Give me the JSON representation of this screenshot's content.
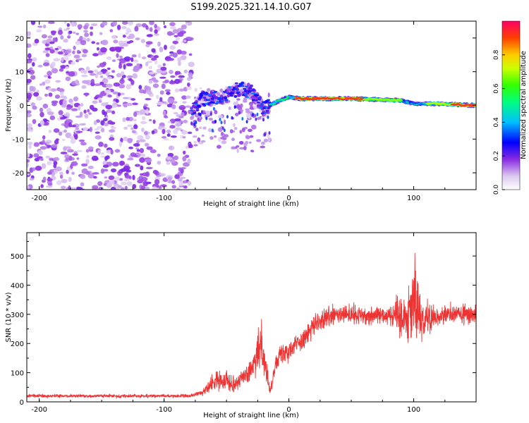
{
  "title": "S199.2025.321.14.10.G07",
  "chart_data": [
    {
      "type": "heatmap",
      "name": "spectrogram",
      "xlabel": "Height of straight line (km)",
      "ylabel": "Frequency (Hz)",
      "xlim": [
        -210,
        150
      ],
      "ylim": [
        -25,
        25
      ],
      "xticks": [
        -200,
        -100,
        0,
        100
      ],
      "yticks": [
        20,
        10,
        0,
        -10,
        -20
      ],
      "colorbar": {
        "label": "Normalized spectral amplitude",
        "range": [
          0,
          1
        ],
        "ticks": [
          0.0,
          0.2,
          0.4,
          0.6,
          0.8
        ]
      },
      "regions": [
        {
          "description_range_km": [
            -210,
            -78
          ],
          "character": "scattered low-amplitude noise, all frequencies"
        },
        {
          "description_range_km": [
            -78,
            -15
          ],
          "character": "scattered moderate blobs between -15 and +8 Hz"
        },
        {
          "description_range_km": [
            -15,
            150
          ],
          "character": "continuous tone near 0 to +3 Hz, peak amplitude ~1.0 from 5 to 60 km and 130 to 150 km"
        }
      ],
      "ridge": [
        {
          "x": -78,
          "f": -2
        },
        {
          "x": -70,
          "f": 2
        },
        {
          "x": -60,
          "f": 2
        },
        {
          "x": -50,
          "f": 3
        },
        {
          "x": -40,
          "f": 5
        },
        {
          "x": -30,
          "f": 4
        },
        {
          "x": -20,
          "f": -1
        },
        {
          "x": -10,
          "f": 1
        },
        {
          "x": 0,
          "f": 2.5
        },
        {
          "x": 10,
          "f": 2
        },
        {
          "x": 50,
          "f": 2
        },
        {
          "x": 90,
          "f": 1.5
        },
        {
          "x": 100,
          "f": 0.5
        },
        {
          "x": 120,
          "f": 0.5
        },
        {
          "x": 150,
          "f": 0
        }
      ]
    },
    {
      "type": "line",
      "name": "snr",
      "xlabel": "Height of straight line (km)",
      "ylabel": "SNR (10 * v/v)",
      "xlim": [
        -210,
        150
      ],
      "ylim": [
        0,
        580
      ],
      "xticks": [
        -200,
        -100,
        0,
        100
      ],
      "yticks": [
        0,
        100,
        200,
        300,
        400,
        500
      ],
      "color": "#ee3333",
      "envelope": [
        {
          "x": -210,
          "mean": 20,
          "spread": 8
        },
        {
          "x": -80,
          "mean": 20,
          "spread": 8
        },
        {
          "x": -70,
          "mean": 30,
          "spread": 15
        },
        {
          "x": -60,
          "mean": 70,
          "spread": 40
        },
        {
          "x": -50,
          "mean": 80,
          "spread": 50
        },
        {
          "x": -45,
          "mean": 60,
          "spread": 40
        },
        {
          "x": -35,
          "mean": 90,
          "spread": 40
        },
        {
          "x": -28,
          "mean": 120,
          "spread": 60
        },
        {
          "x": -22,
          "mean": 210,
          "spread": 120
        },
        {
          "x": -15,
          "mean": 30,
          "spread": 20
        },
        {
          "x": -10,
          "mean": 150,
          "spread": 50
        },
        {
          "x": 0,
          "mean": 180,
          "spread": 50
        },
        {
          "x": 10,
          "mean": 210,
          "spread": 50
        },
        {
          "x": 20,
          "mean": 260,
          "spread": 50
        },
        {
          "x": 30,
          "mean": 290,
          "spread": 50
        },
        {
          "x": 45,
          "mean": 300,
          "spread": 50
        },
        {
          "x": 60,
          "mean": 295,
          "spread": 45
        },
        {
          "x": 80,
          "mean": 300,
          "spread": 45
        },
        {
          "x": 95,
          "mean": 300,
          "spread": 130
        },
        {
          "x": 102,
          "mean": 350,
          "spread": 230
        },
        {
          "x": 106,
          "mean": 280,
          "spread": 120
        },
        {
          "x": 115,
          "mean": 290,
          "spread": 50
        },
        {
          "x": 130,
          "mean": 300,
          "spread": 50
        },
        {
          "x": 150,
          "mean": 300,
          "spread": 50
        }
      ]
    }
  ]
}
